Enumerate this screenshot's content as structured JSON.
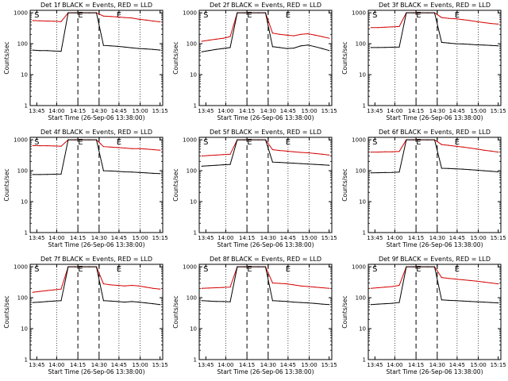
{
  "chart_data": [
    {
      "type": "line",
      "title": "Det 1f BLACK = Events, RED = LLD",
      "xlabel": "Start Time (26-Sep-06 13:38:00)",
      "ylabel": "Counts/sec",
      "x_ticks": [
        "13:45",
        "14:00",
        "14:15",
        "14:30",
        "14:45",
        "15:00",
        "15:15"
      ],
      "y_ticks": [
        "1",
        "10",
        "100",
        "1000"
      ],
      "ylim": [
        1,
        1200
      ],
      "markers": [
        "S",
        "E",
        "E"
      ],
      "series": [
        {
          "color": "#d40000",
          "values": [
            560,
            550,
            540,
            530,
            520,
            1000,
            1000,
            1000,
            1000,
            1000,
            780,
            760,
            730,
            700,
            680,
            620,
            580,
            540,
            510
          ]
        },
        {
          "color": "#000000",
          "values": [
            62,
            60,
            60,
            58,
            57,
            1000,
            1000,
            1000,
            1000,
            1000,
            88,
            85,
            82,
            78,
            74,
            70,
            68,
            65,
            62
          ]
        }
      ]
    },
    {
      "type": "line",
      "title": "Det 2f BLACK = Events, RED = LLD",
      "xlabel": "Start Time (26-Sep-06 13:38:00)",
      "ylabel": "Counts/sec",
      "x_ticks": [
        "13:45",
        "14:00",
        "14:15",
        "14:30",
        "14:45",
        "15:00",
        "15:15"
      ],
      "y_ticks": [
        "1",
        "10",
        "100",
        "1000"
      ],
      "ylim": [
        1,
        1200
      ],
      "markers": [
        "S",
        "E",
        "E"
      ],
      "series": [
        {
          "color": "#d40000",
          "values": [
            120,
            130,
            140,
            150,
            170,
            1000,
            1000,
            1000,
            1000,
            1000,
            220,
            200,
            190,
            180,
            200,
            210,
            190,
            170,
            150
          ]
        },
        {
          "color": "#000000",
          "values": [
            55,
            60,
            65,
            70,
            75,
            1000,
            1000,
            1000,
            1000,
            1000,
            80,
            75,
            70,
            72,
            85,
            90,
            80,
            70,
            60
          ]
        }
      ]
    },
    {
      "type": "line",
      "title": "Det 3f BLACK = Events, RED = LLD",
      "xlabel": "Start Time (26-Sep-06 13:38:00)",
      "ylabel": "Counts/sec",
      "x_ticks": [
        "13:45",
        "14:00",
        "14:15",
        "14:30",
        "14:45",
        "15:00",
        "15:15"
      ],
      "y_ticks": [
        "1",
        "10",
        "100",
        "1000"
      ],
      "ylim": [
        1,
        1200
      ],
      "markers": [
        "S",
        "E",
        "E"
      ],
      "series": [
        {
          "color": "#d40000",
          "values": [
            330,
            330,
            340,
            350,
            360,
            1000,
            1000,
            1000,
            1000,
            1000,
            700,
            660,
            640,
            600,
            560,
            520,
            480,
            450,
            430
          ]
        },
        {
          "color": "#000000",
          "values": [
            75,
            75,
            76,
            77,
            78,
            1000,
            1000,
            1000,
            1000,
            1000,
            110,
            105,
            100,
            98,
            95,
            92,
            90,
            88,
            85
          ]
        }
      ]
    },
    {
      "type": "line",
      "title": "Det 4f BLACK = Events, RED = LLD",
      "xlabel": "Start Time (26-Sep-06 13:38:00)",
      "ylabel": "Counts/sec",
      "x_ticks": [
        "13:45",
        "14:00",
        "14:15",
        "14:30",
        "14:45",
        "15:00",
        "15:15"
      ],
      "y_ticks": [
        "1",
        "10",
        "100",
        "1000"
      ],
      "ylim": [
        1,
        1200
      ],
      "markers": [
        "S",
        "E",
        "E"
      ],
      "series": [
        {
          "color": "#d40000",
          "values": [
            650,
            640,
            640,
            630,
            620,
            1000,
            1000,
            1000,
            1000,
            1000,
            600,
            580,
            560,
            540,
            520,
            520,
            500,
            480,
            460
          ]
        },
        {
          "color": "#000000",
          "values": [
            75,
            75,
            76,
            77,
            78,
            1000,
            1000,
            1000,
            1000,
            1000,
            100,
            98,
            95,
            92,
            90,
            88,
            85,
            82,
            80
          ]
        }
      ]
    },
    {
      "type": "line",
      "title": "Det 5f BLACK = Events, RED = LLD",
      "xlabel": "Start Time (26-Sep-06 13:38:00)",
      "ylabel": "Counts/sec",
      "x_ticks": [
        "13:45",
        "14:00",
        "14:15",
        "14:30",
        "14:45",
        "15:00",
        "15:15"
      ],
      "y_ticks": [
        "1",
        "10",
        "100",
        "1000"
      ],
      "ylim": [
        1,
        1200
      ],
      "markers": [
        "S",
        "E",
        "E"
      ],
      "series": [
        {
          "color": "#d40000",
          "values": [
            300,
            310,
            320,
            330,
            340,
            1000,
            1000,
            1000,
            1000,
            1000,
            480,
            450,
            430,
            410,
            390,
            380,
            360,
            340,
            320
          ]
        },
        {
          "color": "#000000",
          "values": [
            140,
            145,
            150,
            155,
            160,
            1000,
            1000,
            1000,
            1000,
            1000,
            190,
            185,
            180,
            175,
            170,
            165,
            160,
            155,
            150
          ]
        }
      ]
    },
    {
      "type": "line",
      "title": "Det 6f BLACK = Events, RED = LLD",
      "xlabel": "Start Time (26-Sep-06 13:38:00)",
      "ylabel": "Counts/sec",
      "x_ticks": [
        "13:45",
        "14:00",
        "14:15",
        "14:30",
        "14:45",
        "15:00",
        "15:15"
      ],
      "y_ticks": [
        "1",
        "10",
        "100",
        "1000"
      ],
      "ylim": [
        1,
        1200
      ],
      "markers": [
        "S",
        "E",
        "E"
      ],
      "series": [
        {
          "color": "#d40000",
          "values": [
            400,
            400,
            410,
            410,
            420,
            1000,
            1000,
            1000,
            1000,
            1000,
            700,
            660,
            620,
            580,
            540,
            500,
            460,
            430,
            400
          ]
        },
        {
          "color": "#000000",
          "values": [
            85,
            86,
            87,
            88,
            90,
            1000,
            1000,
            1000,
            1000,
            1000,
            120,
            118,
            115,
            112,
            108,
            104,
            100,
            96,
            92
          ]
        }
      ]
    },
    {
      "type": "line",
      "title": "Det 7f BLACK = Events, RED = LLD",
      "xlabel": "Start Time (26-Sep-06 13:38:00)",
      "ylabel": "Counts/sec",
      "x_ticks": [
        "13:45",
        "14:00",
        "14:15",
        "14:30",
        "14:45",
        "15:00",
        "15:15"
      ],
      "y_ticks": [
        "1",
        "10",
        "100",
        "1000"
      ],
      "ylim": [
        1,
        1200
      ],
      "markers": [
        "S",
        "E",
        "E"
      ],
      "series": [
        {
          "color": "#d40000",
          "values": [
            150,
            160,
            170,
            180,
            190,
            1000,
            1000,
            1000,
            1000,
            1000,
            280,
            260,
            250,
            240,
            250,
            240,
            220,
            200,
            190
          ]
        },
        {
          "color": "#000000",
          "values": [
            70,
            72,
            75,
            78,
            80,
            1000,
            1000,
            1000,
            1000,
            1000,
            80,
            78,
            75,
            72,
            75,
            72,
            68,
            64,
            60
          ]
        }
      ]
    },
    {
      "type": "line",
      "title": "Det 8f BLACK = Events, RED = LLD",
      "xlabel": "Start Time (26-Sep-06 13:38:00)",
      "ylabel": "Counts/sec",
      "x_ticks": [
        "13:45",
        "14:00",
        "14:15",
        "14:30",
        "14:45",
        "15:00",
        "15:15"
      ],
      "y_ticks": [
        "1",
        "10",
        "100",
        "1000"
      ],
      "ylim": [
        1,
        1200
      ],
      "markers": [
        "S",
        "E",
        "E"
      ],
      "series": [
        {
          "color": "#d40000",
          "values": [
            200,
            205,
            210,
            215,
            220,
            1000,
            1000,
            1000,
            1000,
            1000,
            300,
            290,
            280,
            260,
            240,
            230,
            220,
            210,
            200
          ]
        },
        {
          "color": "#000000",
          "values": [
            80,
            78,
            76,
            75,
            74,
            1000,
            1000,
            1000,
            1000,
            1000,
            80,
            78,
            76,
            72,
            70,
            68,
            65,
            62,
            60
          ]
        }
      ]
    },
    {
      "type": "line",
      "title": "Det 9f BLACK = Events, RED = LLD",
      "xlabel": "Start Time (26-Sep-06 13:38:00)",
      "ylabel": "Counts/sec",
      "x_ticks": [
        "13:45",
        "14:00",
        "14:15",
        "14:30",
        "14:45",
        "15:00",
        "15:15"
      ],
      "y_ticks": [
        "1",
        "10",
        "100",
        "1000"
      ],
      "ylim": [
        1,
        1200
      ],
      "markers": [
        "S",
        "E",
        "E"
      ],
      "series": [
        {
          "color": "#d40000",
          "values": [
            200,
            210,
            220,
            230,
            250,
            1000,
            1000,
            1000,
            1000,
            1000,
            450,
            420,
            400,
            380,
            360,
            340,
            320,
            300,
            280
          ]
        },
        {
          "color": "#000000",
          "values": [
            60,
            62,
            64,
            66,
            70,
            1000,
            1000,
            1000,
            1000,
            1000,
            85,
            82,
            80,
            78,
            76,
            74,
            72,
            70,
            68
          ]
        }
      ]
    }
  ]
}
